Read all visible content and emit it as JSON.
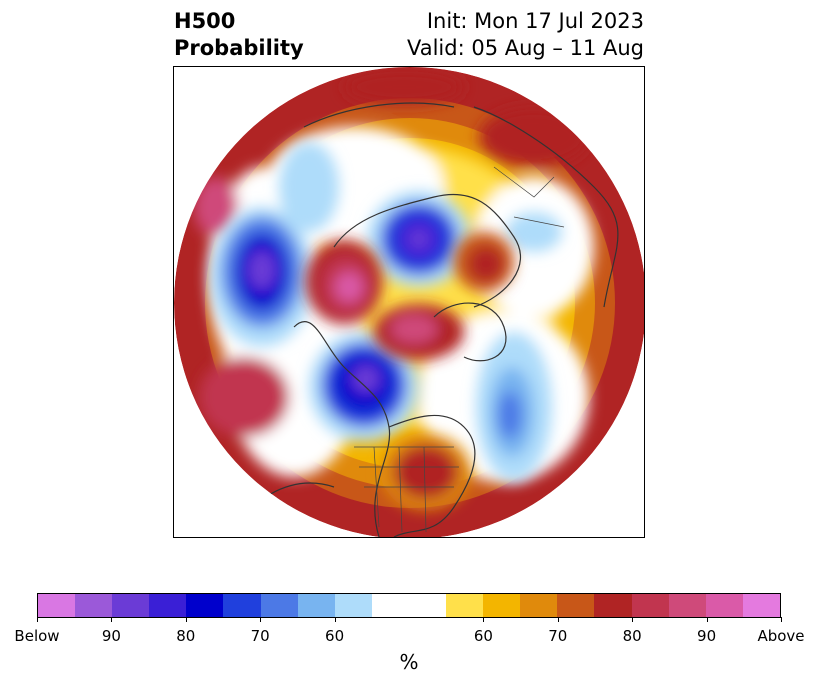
{
  "title": {
    "left_line1": "H500",
    "left_line2": "Probability",
    "right_line1": "Init: Mon 17 Jul 2023",
    "right_line2": "Valid: 05 Aug – 11 Aug"
  },
  "map": {
    "projection": "north-polar-stereographic",
    "features": [
      "coastlines",
      "country-borders",
      "us-state-borders"
    ],
    "anomaly_centers": [
      {
        "type": "below",
        "region": "north-pacific",
        "max_category": "80"
      },
      {
        "type": "below",
        "region": "arctic-siberia",
        "max_category": "90"
      },
      {
        "type": "below",
        "region": "central-canada",
        "max_category": "90"
      },
      {
        "type": "below",
        "region": "north-atlantic",
        "max_category": "70"
      },
      {
        "type": "above",
        "region": "eastern-us",
        "max_category": "80"
      },
      {
        "type": "above",
        "region": "arctic-alaska",
        "max_category": "Above"
      },
      {
        "type": "above",
        "region": "greenland",
        "max_category": "90"
      },
      {
        "type": "above",
        "region": "north-europe",
        "max_category": "80"
      }
    ]
  },
  "colorbar": {
    "colors": [
      "#d977e3",
      "#9b59d9",
      "#6b3bd6",
      "#3a1fd6",
      "#0000cc",
      "#2040dd",
      "#4c79e6",
      "#78b4f0",
      "#aedcfa",
      "#ffffff",
      "#ffffff",
      "#ffe04a",
      "#f3b500",
      "#e08a0c",
      "#c85718",
      "#b02424",
      "#c1354f",
      "#cf4a7a",
      "#da5aa8",
      "#e47adf"
    ],
    "tick_labels": [
      "Below",
      "90",
      "80",
      "70",
      "60",
      "60",
      "70",
      "80",
      "90",
      "Above"
    ],
    "unit_label": "%"
  }
}
